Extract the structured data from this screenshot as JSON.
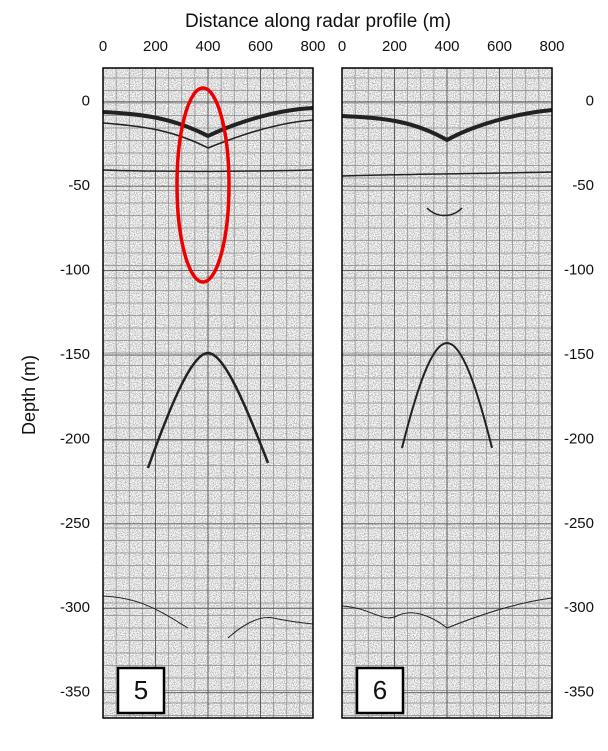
{
  "chart_data": [
    {
      "type": "radargram",
      "title": "Distance along radar profile (m)",
      "ylabel": "Depth (m)",
      "label": "5",
      "xlim": [
        0,
        800
      ],
      "xticks": [
        0,
        200,
        400,
        600,
        800
      ],
      "ylim": [
        -365,
        20
      ],
      "yticks": [
        0,
        -50,
        -100,
        -150,
        -200,
        -250,
        -300,
        -350
      ],
      "ytick_side": "left"
    },
    {
      "type": "radargram",
      "label": "6",
      "xlim": [
        0,
        800
      ],
      "xticks": [
        0,
        200,
        400,
        600,
        800
      ],
      "ylim": [
        -365,
        20
      ],
      "yticks": [
        0,
        -50,
        -100,
        -150,
        -200,
        -250,
        -300,
        -350
      ],
      "ytick_side": "right"
    }
  ]
}
